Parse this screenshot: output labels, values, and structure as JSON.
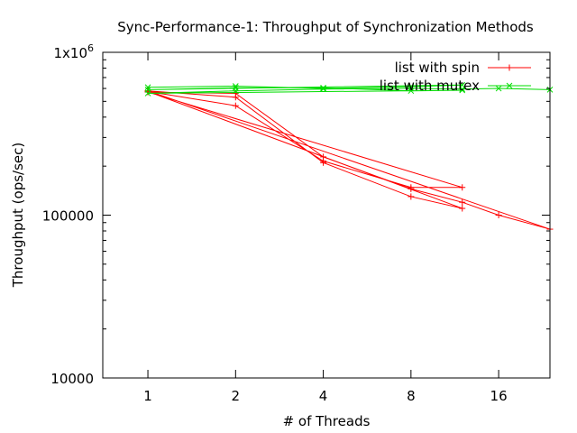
{
  "chart_data": {
    "type": "line",
    "title": "Sync-Performance-1: Throughput of Synchronization Methods",
    "xlabel": "# of Threads",
    "ylabel": "Throughput (ops/sec)",
    "x_scale": "log2",
    "y_scale": "log10",
    "xlim": [
      0.7,
      24
    ],
    "ylim": [
      10000,
      1000000
    ],
    "x_ticks": [
      {
        "value": 1,
        "label": "1"
      },
      {
        "value": 2,
        "label": "2"
      },
      {
        "value": 4,
        "label": "4"
      },
      {
        "value": 8,
        "label": "8"
      },
      {
        "value": 16,
        "label": "16"
      }
    ],
    "y_ticks": [
      {
        "value": 10000,
        "label": "10000"
      },
      {
        "value": 100000,
        "label": "100000"
      },
      {
        "value": 1000000,
        "label": "1x10",
        "sup": "6"
      }
    ],
    "legend_position": "top-right",
    "grid": false,
    "series": [
      {
        "name": "list with spin",
        "color": "#ff0000",
        "marker": "plus",
        "points": [
          [
            1,
            580000
          ],
          [
            2,
            530000
          ],
          [
            4,
            210000
          ],
          [
            8,
            130000
          ],
          [
            12,
            110000
          ],
          [
            1,
            575000
          ],
          [
            2,
            470000
          ],
          [
            4,
            215000
          ],
          [
            8,
            148000
          ],
          [
            12,
            148000
          ],
          [
            1,
            570000
          ],
          [
            2,
            560000
          ],
          [
            4,
            228000
          ],
          [
            8,
            145000
          ],
          [
            12,
            120000
          ],
          [
            16,
            100000
          ],
          [
            24,
            82000
          ],
          [
            1,
            580000
          ]
        ]
      },
      {
        "name": "list with mutex",
        "color": "#00dd00",
        "marker": "cross",
        "points": [
          [
            1,
            610000
          ],
          [
            2,
            620000
          ],
          [
            4,
            600000
          ],
          [
            8,
            615000
          ],
          [
            12,
            630000
          ],
          [
            1,
            590000
          ],
          [
            2,
            605000
          ],
          [
            4,
            605000
          ],
          [
            8,
            580000
          ],
          [
            12,
            585000
          ],
          [
            1,
            560000
          ],
          [
            2,
            580000
          ],
          [
            4,
            595000
          ],
          [
            8,
            600000
          ],
          [
            12,
            595000
          ],
          [
            16,
            600000
          ],
          [
            24,
            590000
          ]
        ]
      }
    ]
  }
}
